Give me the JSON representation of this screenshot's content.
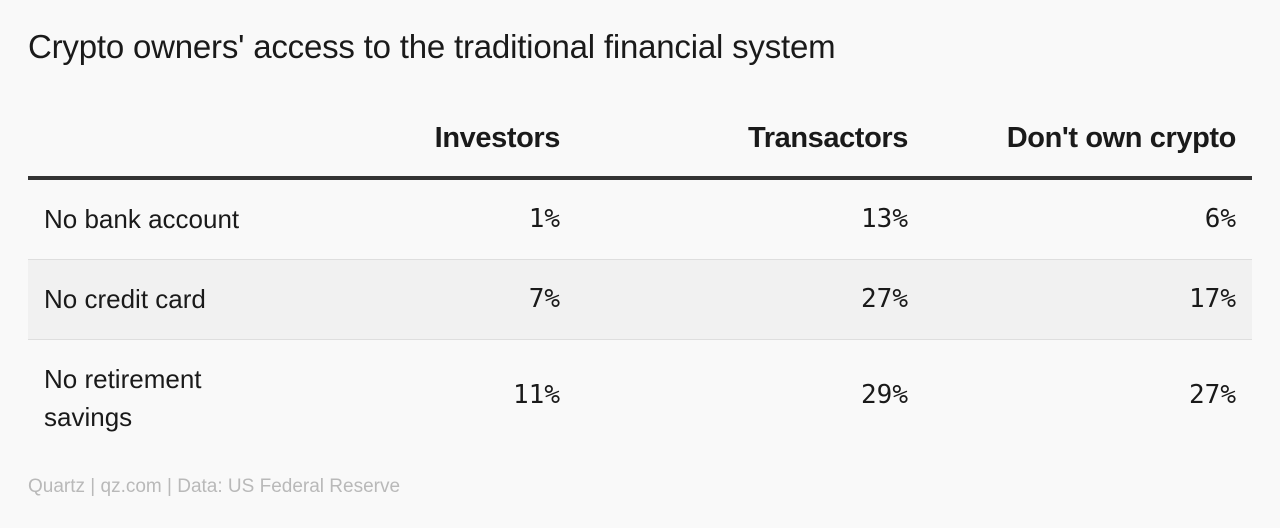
{
  "title": "Crypto owners' access to the traditional financial system",
  "source": "Quartz | qz.com | Data: US Federal Reserve",
  "chart_data": {
    "type": "table",
    "columns": [
      "Investors",
      "Transactors",
      "Don't own crypto"
    ],
    "rows": [
      {
        "label": "No bank account",
        "values": [
          "1%",
          "13%",
          "6%"
        ]
      },
      {
        "label": "No credit card",
        "values": [
          "7%",
          "27%",
          "17%"
        ]
      },
      {
        "label": "No retirement savings",
        "values": [
          "11%",
          "29%",
          "27%"
        ]
      }
    ]
  },
  "colors": {
    "background": "#f9f9f9",
    "alt_row": "#f1f1f1",
    "header_rule": "#333333",
    "source_text": "#b9b9b9"
  }
}
